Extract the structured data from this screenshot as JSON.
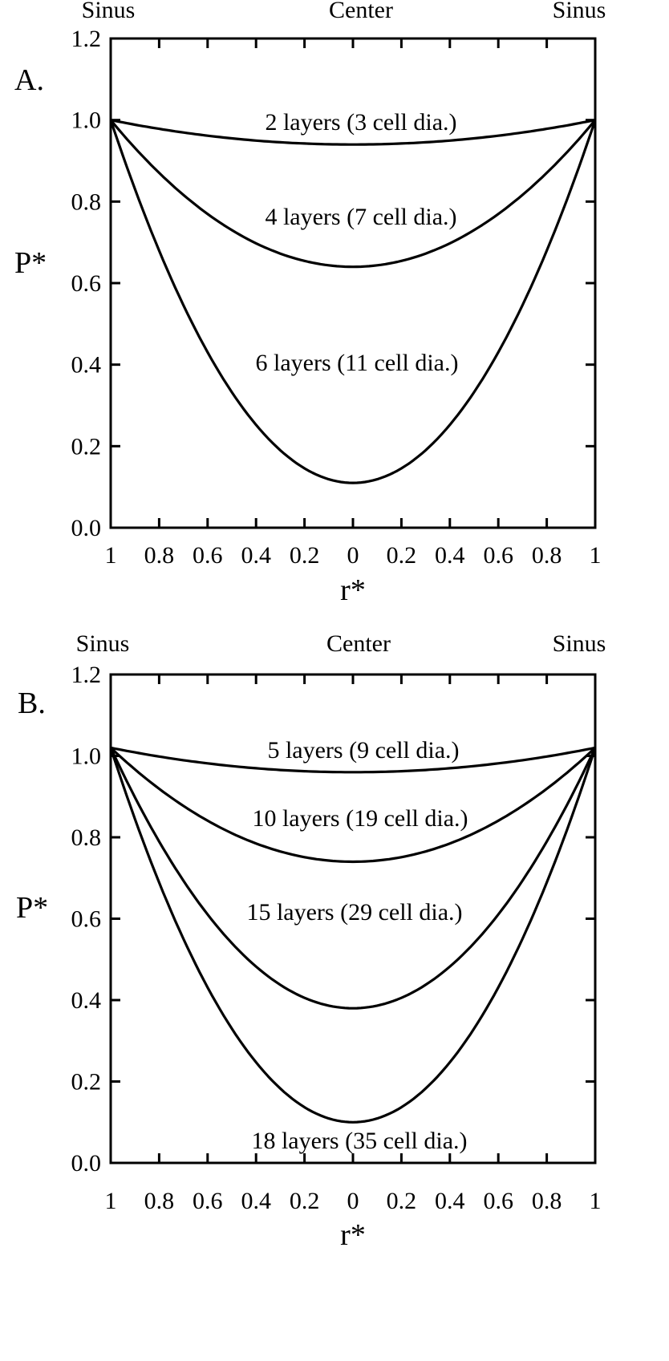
{
  "chart_data": [
    {
      "type": "line",
      "panel_label": "A.",
      "top_labels": [
        "Sinus",
        "Center",
        "Sinus"
      ],
      "xlabel": "r*",
      "ylabel": "P*",
      "x_tick_labels": [
        "1",
        "0.8",
        "0.6",
        "0.4",
        "0.2",
        "0",
        "0.2",
        "0.4",
        "0.6",
        "0.8",
        "1"
      ],
      "x_tick_values": [
        -1,
        -0.8,
        -0.6,
        -0.4,
        -0.2,
        0,
        0.2,
        0.4,
        0.6,
        0.8,
        1
      ],
      "y_tick_labels": [
        "0.0",
        "0.2",
        "0.4",
        "0.6",
        "0.8",
        "1.0",
        "1.2"
      ],
      "y_tick_values": [
        0,
        0.2,
        0.4,
        0.6,
        0.8,
        1.0,
        1.2
      ],
      "xlim": [
        -1,
        1
      ],
      "ylim": [
        0,
        1.2
      ],
      "grid": false,
      "legend": "none (curves labeled inline)",
      "series": [
        {
          "label": "2 layers (3 cell dia.)",
          "endpoint": 1.0,
          "center": 0.94
        },
        {
          "label": "4 layers (7 cell dia.)",
          "endpoint": 1.0,
          "center": 0.64
        },
        {
          "label": "6 layers (11 cell dia.)",
          "endpoint": 1.0,
          "center": 0.11
        }
      ]
    },
    {
      "type": "line",
      "panel_label": "B.",
      "top_labels": [
        "Sinus",
        "Center",
        "Sinus"
      ],
      "xlabel": "r*",
      "ylabel": "P*",
      "x_tick_labels": [
        "1",
        "0.8",
        "0.6",
        "0.4",
        "0.2",
        "0",
        "0.2",
        "0.4",
        "0.6",
        "0.8",
        "1"
      ],
      "x_tick_values": [
        -1,
        -0.8,
        -0.6,
        -0.4,
        -0.2,
        0,
        0.2,
        0.4,
        0.6,
        0.8,
        1
      ],
      "y_tick_labels": [
        "0.0",
        "0.2",
        "0.4",
        "0.6",
        "0.8",
        "1.0",
        "1.2"
      ],
      "y_tick_values": [
        0,
        0.2,
        0.4,
        0.6,
        0.8,
        1.0,
        1.2
      ],
      "xlim": [
        -1,
        1
      ],
      "ylim": [
        0,
        1.2
      ],
      "grid": false,
      "legend": "none (curves labeled inline)",
      "series": [
        {
          "label": "5 layers (9 cell dia.)",
          "endpoint": 1.02,
          "center": 0.96
        },
        {
          "label": "10 layers (19 cell dia.)",
          "endpoint": 1.02,
          "center": 0.74
        },
        {
          "label": "15 layers (29 cell dia.)",
          "endpoint": 1.02,
          "center": 0.38
        },
        {
          "label": "18 layers (35 cell dia.)",
          "endpoint": 1.02,
          "center": 0.1
        }
      ]
    }
  ]
}
